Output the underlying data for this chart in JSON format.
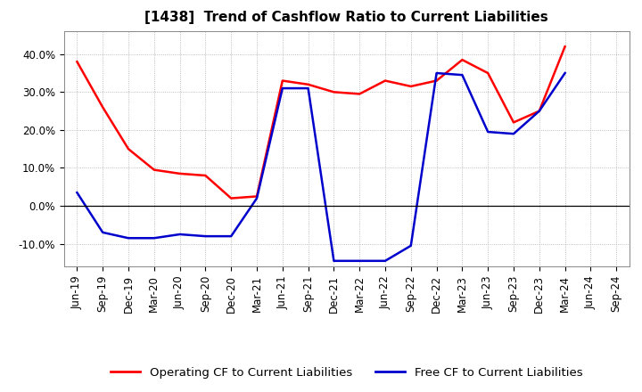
{
  "title": "[1438]  Trend of Cashflow Ratio to Current Liabilities",
  "x_labels": [
    "Jun-19",
    "Sep-19",
    "Dec-19",
    "Mar-20",
    "Jun-20",
    "Sep-20",
    "Dec-20",
    "Mar-21",
    "Jun-21",
    "Sep-21",
    "Dec-21",
    "Mar-22",
    "Jun-22",
    "Sep-22",
    "Dec-22",
    "Mar-23",
    "Jun-23",
    "Sep-23",
    "Dec-23",
    "Mar-24",
    "Jun-24",
    "Sep-24"
  ],
  "operating_cf": [
    38.0,
    26.0,
    15.0,
    9.5,
    8.5,
    8.0,
    2.0,
    2.5,
    33.0,
    32.0,
    30.0,
    29.5,
    33.0,
    31.5,
    33.0,
    38.5,
    35.0,
    22.0,
    25.0,
    42.0,
    null,
    null
  ],
  "free_cf": [
    3.5,
    -7.0,
    -8.5,
    -8.5,
    -7.5,
    -8.0,
    -8.0,
    2.0,
    31.0,
    31.0,
    -14.5,
    -14.5,
    -14.5,
    -10.5,
    35.0,
    34.5,
    19.5,
    19.0,
    25.0,
    35.0,
    null,
    null
  ],
  "ylim": [
    -16,
    46
  ],
  "yticks": [
    -10,
    0,
    10,
    20,
    30,
    40
  ],
  "operating_color": "#FF0000",
  "free_color": "#0000CC",
  "background_color": "#FFFFFF",
  "plot_bg_color": "#FFFFFF",
  "grid_color": "#AAAAAA",
  "legend_labels": [
    "Operating CF to Current Liabilities",
    "Free CF to Current Liabilities"
  ],
  "title_fontsize": 11,
  "tick_fontsize": 8.5,
  "legend_fontsize": 9.5
}
